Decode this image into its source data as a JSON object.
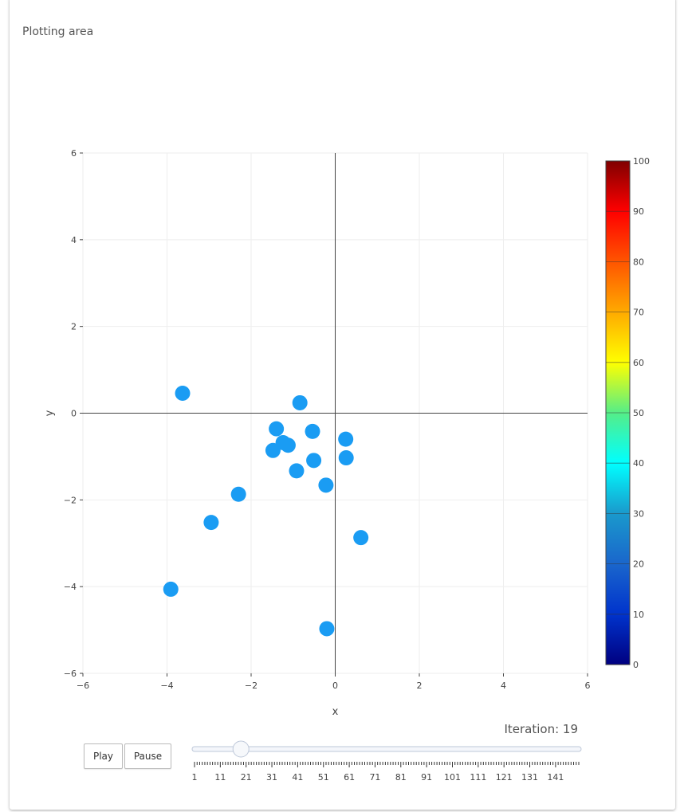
{
  "panel": {
    "title": "Plotting area"
  },
  "slider": {
    "prefix": "Iteration: ",
    "value": 19,
    "min": 1,
    "max": 150,
    "label_values": [
      1,
      11,
      21,
      31,
      41,
      51,
      61,
      71,
      81,
      91,
      101,
      111,
      121,
      131,
      141
    ]
  },
  "controls": {
    "play_label": "Play",
    "pause_label": "Pause"
  },
  "chart_data": {
    "type": "scatter",
    "xlabel": "x",
    "ylabel": "y",
    "xlim": [
      -6,
      6
    ],
    "ylim": [
      -6,
      6
    ],
    "xticks": [
      -6,
      -4,
      -2,
      0,
      2,
      4,
      6
    ],
    "yticks": [
      -6,
      -4,
      -2,
      0,
      2,
      4,
      6
    ],
    "grid": true,
    "zero_lines": true,
    "marker_color": "#1a9cf3",
    "points": [
      {
        "x": -3.63,
        "y": 0.46
      },
      {
        "x": -0.84,
        "y": 0.24
      },
      {
        "x": -1.4,
        "y": -0.36
      },
      {
        "x": -0.54,
        "y": -0.42
      },
      {
        "x": -1.24,
        "y": -0.68
      },
      {
        "x": -1.12,
        "y": -0.74
      },
      {
        "x": 0.25,
        "y": -0.6
      },
      {
        "x": -1.48,
        "y": -0.86
      },
      {
        "x": 0.26,
        "y": -1.03
      },
      {
        "x": -0.51,
        "y": -1.09
      },
      {
        "x": -0.92,
        "y": -1.33
      },
      {
        "x": -0.22,
        "y": -1.66
      },
      {
        "x": -2.3,
        "y": -1.87
      },
      {
        "x": -2.95,
        "y": -2.52
      },
      {
        "x": 0.61,
        "y": -2.87
      },
      {
        "x": -3.91,
        "y": -4.06
      },
      {
        "x": -0.2,
        "y": -4.97
      }
    ],
    "colorbar": {
      "range": [
        0,
        100
      ],
      "ticks": [
        0,
        10,
        20,
        30,
        40,
        50,
        60,
        70,
        80,
        90,
        100
      ],
      "colors": [
        "#000080",
        "#0033cc",
        "#1a66cc",
        "#1a99cc",
        "#00ffff",
        "#55ee88",
        "#ffff00",
        "#ffaa00",
        "#ff5500",
        "#ff0000",
        "#800000"
      ]
    }
  }
}
